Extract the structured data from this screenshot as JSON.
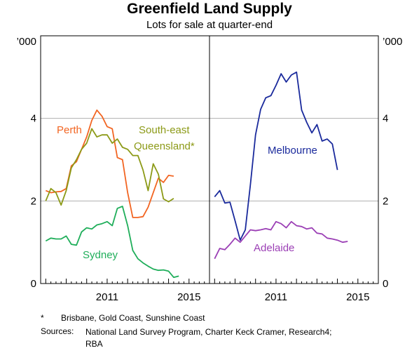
{
  "chart_title": "Greenfield Land Supply",
  "chart_subtitle": "Lots for sale at quarter-end",
  "footnote": {
    "mark": "*",
    "text": "Brisbane, Gold Coast, Sunshine Coast"
  },
  "sources": {
    "label": "Sources:",
    "text": "National Land Survey Program, Charter Keck Cramer, Research4; RBA"
  },
  "colors": {
    "perth": "#f26522",
    "seq": "#8c9a17",
    "sydney": "#1fae5a",
    "melbourne": "#1a2a9c",
    "adelaide": "#9b3fb5",
    "grid": "#b0b0b0"
  },
  "chart_data": [
    {
      "type": "line",
      "panel": "left",
      "y_unit_label": "’000",
      "ylim": [
        0,
        6
      ],
      "yticks": [
        0,
        2,
        4
      ],
      "xlim": [
        2007.75,
        2016.0
      ],
      "xtick_labels": [
        "2011",
        "2015"
      ],
      "x_quarters": [
        2008.0,
        2008.25,
        2008.5,
        2008.75,
        2009.0,
        2009.25,
        2009.5,
        2009.75,
        2010.0,
        2010.25,
        2010.5,
        2010.75,
        2011.0,
        2011.25,
        2011.5,
        2011.75,
        2012.0,
        2012.25,
        2012.5,
        2012.75,
        2013.0,
        2013.25,
        2013.5,
        2013.75,
        2014.0,
        2014.25,
        2014.5,
        2014.75,
        2015.0
      ],
      "series": [
        {
          "name": "Perth",
          "color_key": "perth",
          "x_start": 2008.0,
          "values": [
            2.25,
            2.2,
            2.22,
            2.23,
            2.3,
            2.85,
            2.95,
            3.25,
            3.55,
            3.95,
            4.2,
            4.05,
            3.8,
            3.75,
            3.05,
            3.0,
            2.2,
            1.6,
            1.6,
            1.62,
            1.85,
            2.2,
            2.55,
            2.45,
            2.62,
            2.6
          ]
        },
        {
          "name": "South-east Queensland*",
          "label_lines": [
            "South-east",
            "Queensland*"
          ],
          "color_key": "seq",
          "x_start": 2008.0,
          "values": [
            2.0,
            2.3,
            2.2,
            1.9,
            2.25,
            2.8,
            3.0,
            3.25,
            3.4,
            3.75,
            3.55,
            3.6,
            3.6,
            3.4,
            3.5,
            3.3,
            3.25,
            3.1,
            3.1,
            2.75,
            2.25,
            2.9,
            2.65,
            2.05,
            1.98,
            2.06
          ]
        },
        {
          "name": "Sydney",
          "color_key": "sydney",
          "x_start": 2008.0,
          "values": [
            1.03,
            1.1,
            1.08,
            1.08,
            1.15,
            0.95,
            0.93,
            1.25,
            1.35,
            1.32,
            1.42,
            1.45,
            1.5,
            1.4,
            1.82,
            1.87,
            1.4,
            0.8,
            0.6,
            0.5,
            0.42,
            0.35,
            0.32,
            0.33,
            0.3,
            0.15,
            0.18
          ]
        }
      ]
    },
    {
      "type": "line",
      "panel": "right",
      "y_unit_label": "’000",
      "ylim": [
        0,
        6
      ],
      "yticks": [
        0,
        2,
        4
      ],
      "xlim": [
        2007.75,
        2016.0
      ],
      "xtick_labels": [
        "2011",
        "2015"
      ],
      "series": [
        {
          "name": "Melbourne",
          "color_key": "melbourne",
          "x_start": 2008.0,
          "values": [
            2.1,
            2.25,
            1.95,
            1.97,
            1.52,
            1.05,
            1.3,
            2.4,
            3.6,
            4.22,
            4.5,
            4.55,
            4.8,
            5.08,
            4.88,
            5.05,
            5.12,
            4.2,
            3.9,
            3.65,
            3.85,
            3.45,
            3.5,
            3.38,
            2.75
          ]
        },
        {
          "name": "Adelaide",
          "color_key": "adelaide",
          "x_start": 2008.0,
          "values": [
            0.6,
            0.85,
            0.82,
            0.95,
            1.1,
            1.0,
            1.15,
            1.3,
            1.28,
            1.3,
            1.33,
            1.3,
            1.5,
            1.45,
            1.35,
            1.5,
            1.4,
            1.38,
            1.32,
            1.35,
            1.22,
            1.2,
            1.1,
            1.08,
            1.05,
            1.0,
            1.02
          ]
        }
      ]
    }
  ]
}
